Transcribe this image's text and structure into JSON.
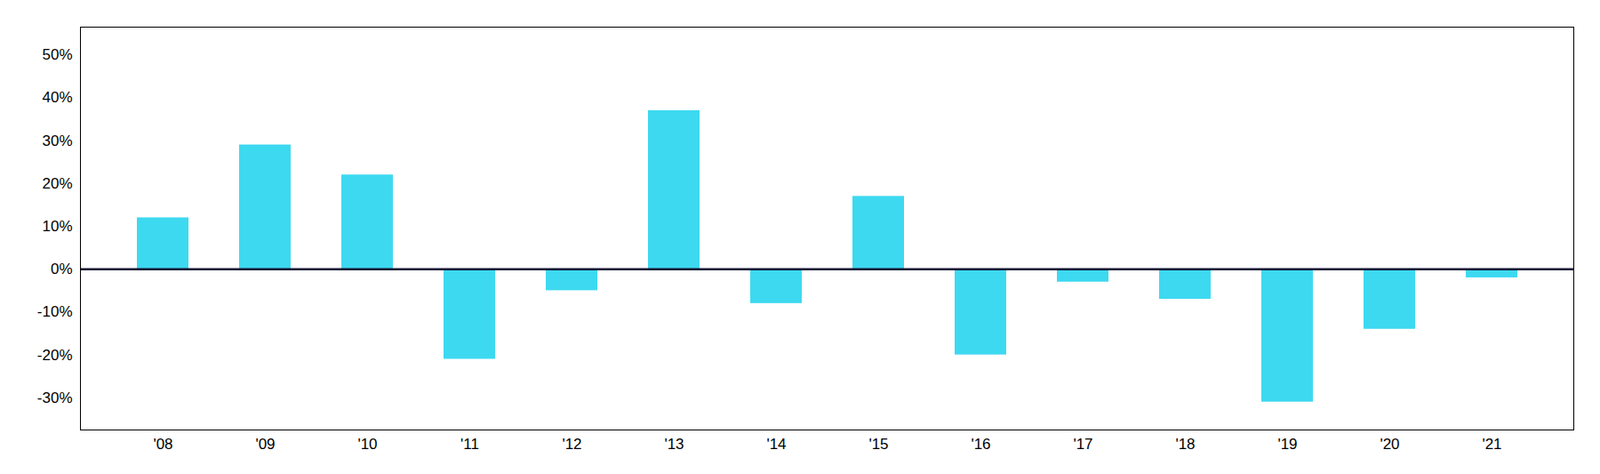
{
  "chart_data": {
    "type": "bar",
    "categories": [
      "'08",
      "'09",
      "'10",
      "'11",
      "'12",
      "'13",
      "'14",
      "'15",
      "'16",
      "'17",
      "'18",
      "'19",
      "'20",
      "'21"
    ],
    "values": [
      0.12,
      0.29,
      0.22,
      -0.21,
      -0.05,
      0.37,
      -0.08,
      0.17,
      -0.2,
      -0.03,
      -0.07,
      -0.31,
      -0.14,
      -0.02
    ],
    "color": "#3DD9F0",
    "ylim": [
      -0.375,
      0.565
    ],
    "yticks": [
      {
        "value": -0.3,
        "label": "-30%"
      },
      {
        "value": -0.2,
        "label": "-20%"
      },
      {
        "value": -0.1,
        "label": "-10%"
      },
      {
        "value": 0.0,
        "label": "0%"
      },
      {
        "value": 0.1,
        "label": "10%"
      },
      {
        "value": 0.2,
        "label": "20%"
      },
      {
        "value": 0.3,
        "label": "30%"
      },
      {
        "value": 0.4,
        "label": "40%"
      },
      {
        "value": 0.5,
        "label": "50%"
      }
    ],
    "grid": false
  }
}
